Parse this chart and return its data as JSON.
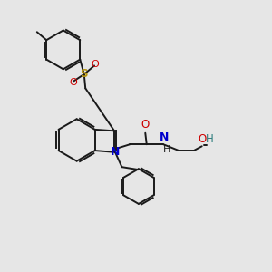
{
  "bg_color": "#e6e6e6",
  "bond_color": "#1a1a1a",
  "figsize": [
    3.0,
    3.0
  ],
  "dpi": 100,
  "xlim": [
    0,
    10
  ],
  "ylim": [
    0,
    10
  ],
  "colors": {
    "N": "#0000cc",
    "O": "#cc0000",
    "S": "#b8960c",
    "OH": "#2e7d7d",
    "bond": "#1a1a1a"
  }
}
